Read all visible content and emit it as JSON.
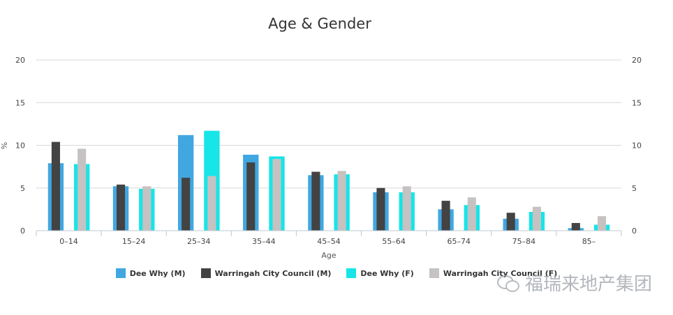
{
  "chart_data": {
    "type": "bar",
    "title": "Age & Gender",
    "xlabel": "Age",
    "ylabel": "%",
    "ylim": [
      0,
      20
    ],
    "yticks": [
      0,
      5,
      10,
      15,
      20
    ],
    "categories": [
      "0–14",
      "15–24",
      "25–34",
      "35–44",
      "45–54",
      "55–64",
      "65–74",
      "75–84",
      "85–"
    ],
    "series": [
      {
        "name": "Dee Why (M)",
        "color": "#41a7e1",
        "values": [
          7.9,
          5.2,
          11.2,
          8.9,
          6.5,
          4.5,
          2.5,
          1.4,
          0.3
        ]
      },
      {
        "name": "Warringah City Council (M)",
        "color": "#434343",
        "values": [
          10.4,
          5.4,
          6.2,
          8.0,
          6.9,
          5.0,
          3.5,
          2.1,
          0.9
        ]
      },
      {
        "name": "Dee Why (F)",
        "color": "#17e5e7",
        "values": [
          7.8,
          4.9,
          11.7,
          8.7,
          6.6,
          4.5,
          3.0,
          2.2,
          0.7
        ]
      },
      {
        "name": "Warringah City Council (F)",
        "color": "#c6c2c2",
        "values": [
          9.6,
          5.2,
          6.4,
          8.4,
          7.0,
          5.2,
          3.9,
          2.8,
          1.7
        ]
      }
    ],
    "legend_position": "bottom"
  },
  "watermark": {
    "text": "福瑞来地产集团",
    "icon": "wechat-icon"
  }
}
